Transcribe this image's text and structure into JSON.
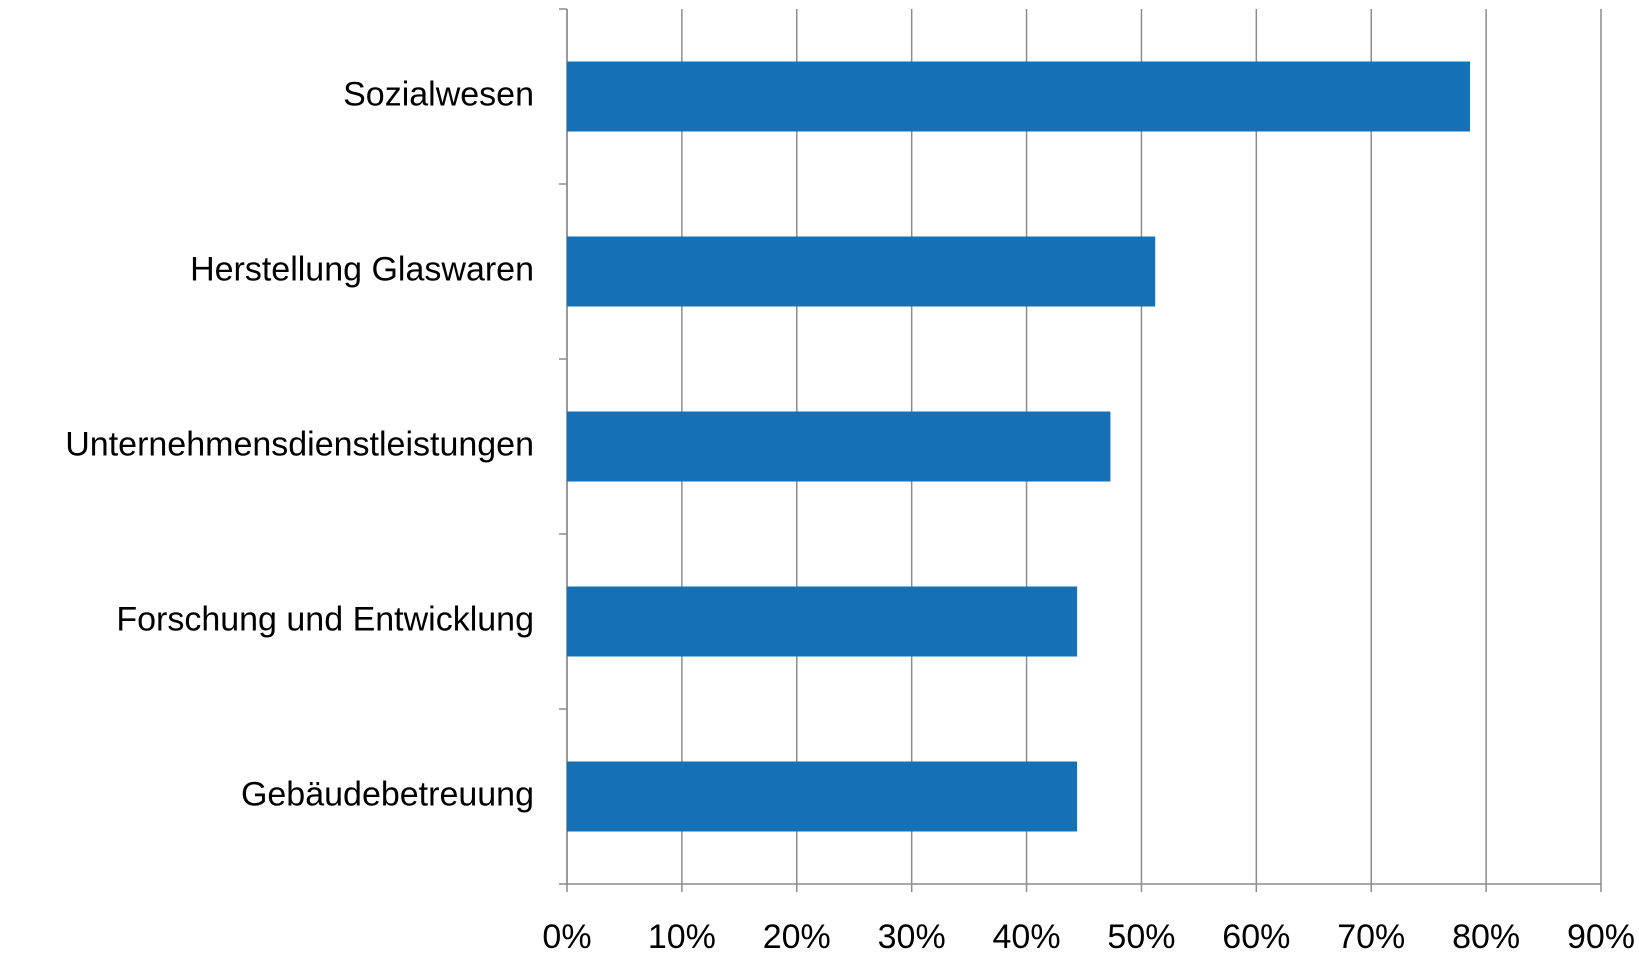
{
  "chart_data": {
    "type": "hbar",
    "categories": [
      "Sozialwesen",
      "Herstellung Glaswaren",
      "Unternehmensdienstleistungen",
      "Forschung und Entwicklung",
      "Gebäudebetreuung"
    ],
    "values": [
      78.6,
      51.2,
      47.3,
      44.4,
      44.4
    ],
    "color": "#1570b5",
    "xlim": [
      0,
      90
    ],
    "xticks": [
      {
        "value": 0,
        "label": "0%"
      },
      {
        "value": 10,
        "label": "10%"
      },
      {
        "value": 20,
        "label": "20%"
      },
      {
        "value": 30,
        "label": "30%"
      },
      {
        "value": 40,
        "label": "40%"
      },
      {
        "value": 50,
        "label": "50%"
      },
      {
        "value": 60,
        "label": "60%"
      },
      {
        "value": 70,
        "label": "70%"
      },
      {
        "value": 80,
        "label": "80%"
      },
      {
        "value": 90,
        "label": "90%"
      }
    ],
    "grid": true
  }
}
